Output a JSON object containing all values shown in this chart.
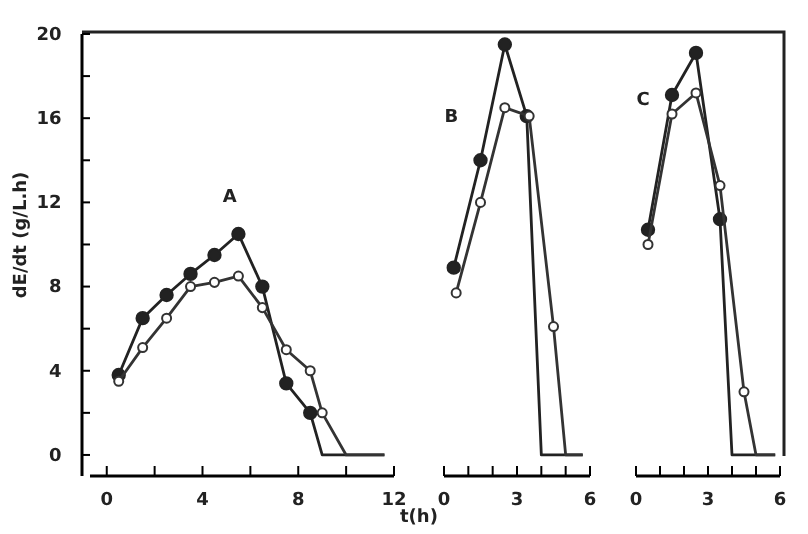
{
  "chart_data": [
    {
      "type": "line",
      "ylabel": "dE/dt (g/L.h)",
      "marker": "circle",
      "line_style": "solid",
      "annotations": [
        "A"
      ],
      "xlim": [
        -0.7,
        12
      ],
      "xticks": [
        0,
        {
          "value": 2,
          "label": null
        },
        4,
        {
          "value": 6,
          "label": null
        },
        8,
        {
          "value": 10,
          "label": null
        },
        12
      ],
      "ylim": [
        -1,
        20
      ],
      "yticks": [
        0,
        {
          "value": 2,
          "label": null
        },
        4,
        {
          "value": 6,
          "label": null
        },
        8,
        {
          "value": 10,
          "label": null
        },
        12,
        {
          "value": 14,
          "label": null
        },
        16,
        {
          "value": 18,
          "label": null
        },
        20
      ],
      "series": [
        {
          "color": "#222222",
          "x": [
            0.5,
            1.5,
            2.5,
            3.5,
            4.5,
            5.5,
            6.5,
            7.5,
            8.5,
            9.0,
            11.6
          ],
          "values": [
            3.8,
            6.5,
            7.6,
            8.6,
            9.5,
            10.5,
            8.0,
            3.4,
            2.0,
            0,
            0
          ]
        },
        {
          "color": "#333333",
          "x": [
            0.5,
            1.5,
            2.5,
            3.5,
            4.5,
            5.5,
            6.5,
            7.5,
            8.5,
            9.0,
            10.0,
            11.6
          ],
          "values": [
            3.5,
            5.1,
            6.5,
            8.0,
            8.2,
            8.5,
            7.0,
            5.0,
            4.0,
            2.0,
            0,
            0
          ]
        }
      ]
    },
    {
      "type": "line",
      "xlabel": "t(h)",
      "marker": "circle",
      "line_style": "solid",
      "tick_labels": "x",
      "annotations": [
        "B"
      ],
      "xlim": [
        0,
        6
      ],
      "xticks": [
        0,
        {
          "value": 1,
          "label": null
        },
        {
          "value": 2,
          "label": null
        },
        3,
        {
          "value": 4,
          "label": null
        },
        {
          "value": 5,
          "label": null
        },
        6
      ],
      "ylim": [
        -1,
        20
      ],
      "series": [
        {
          "color": "#222222",
          "x": [
            0.4,
            1.5,
            2.5,
            3.4,
            4.0,
            5.7
          ],
          "values": [
            8.9,
            14.0,
            19.5,
            16.1,
            0,
            0
          ]
        },
        {
          "color": "#333333",
          "x": [
            0.5,
            1.5,
            2.5,
            3.5,
            4.5,
            5.0,
            5.7
          ],
          "values": [
            7.7,
            12.0,
            16.5,
            16.1,
            6.1,
            0,
            0
          ]
        }
      ]
    },
    {
      "type": "line",
      "marker": "circle",
      "line_style": "solid",
      "tick_labels": "x",
      "annotations": [
        "C"
      ],
      "xlim": [
        0,
        6
      ],
      "xticks": [
        0,
        {
          "value": 1,
          "label": null
        },
        {
          "value": 2,
          "label": null
        },
        3,
        {
          "value": 4,
          "label": null
        },
        {
          "value": 5,
          "label": null
        },
        6
      ],
      "ylim": [
        -1,
        20
      ],
      "series": [
        {
          "color": "#222222",
          "x": [
            0.5,
            1.5,
            2.5,
            3.5,
            4.0,
            5.8
          ],
          "values": [
            10.7,
            17.1,
            19.1,
            11.2,
            0,
            0
          ]
        },
        {
          "color": "#333333",
          "x": [
            0.5,
            1.5,
            2.5,
            3.5,
            4.5,
            5.0,
            5.8
          ],
          "values": [
            10.0,
            16.2,
            17.2,
            12.8,
            3.0,
            0,
            0
          ]
        }
      ]
    }
  ]
}
